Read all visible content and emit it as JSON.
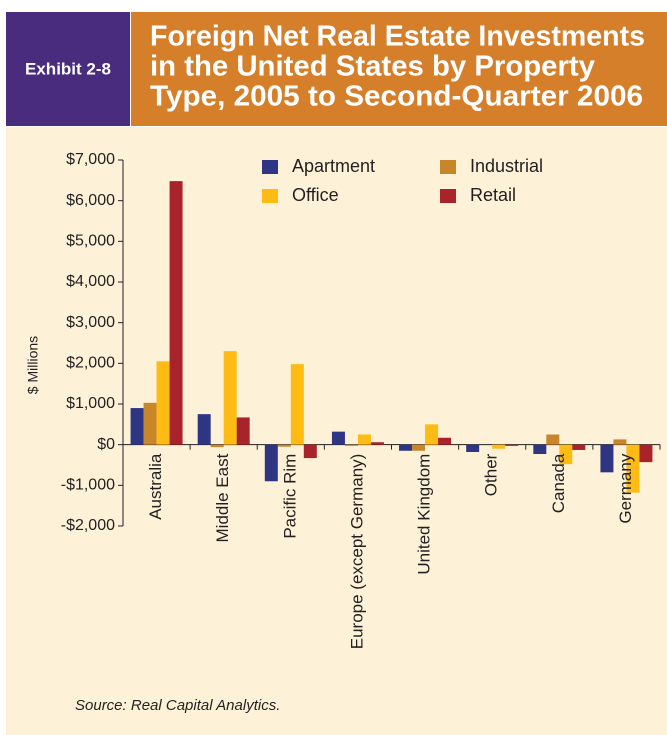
{
  "chart_data": {
    "type": "bar",
    "exhibit": "Exhibit 2-8",
    "title": [
      "Foreign Net Real Estate Investments",
      "in the United States by Property",
      "Type, 2005 to Second-Quarter 2006"
    ],
    "y_label": "$ Millions",
    "source": "Source: Real Capital Analytics.",
    "categories": [
      "Australia",
      "Middle East",
      "Pacific Rim",
      "Europe (except Germany)",
      "United Kingdom",
      "Other",
      "Canada",
      "Germany"
    ],
    "series": [
      {
        "name": "Apartment",
        "color": "#2e3583",
        "values": [
          900,
          750,
          -900,
          320,
          -150,
          -180,
          -230,
          -680
        ]
      },
      {
        "name": "Industrial",
        "color": "#c8862a",
        "values": [
          1030,
          -60,
          -50,
          -30,
          -150,
          0,
          250,
          130
        ]
      },
      {
        "name": "Office",
        "color": "#fdbb13",
        "values": [
          2050,
          2300,
          1980,
          250,
          500,
          -100,
          -480,
          -1180
        ]
      },
      {
        "name": "Retail",
        "color": "#a8232a",
        "values": [
          6480,
          670,
          -330,
          60,
          170,
          -30,
          -130,
          -430
        ]
      }
    ],
    "ylim": [
      -2000,
      7000
    ],
    "yticks": [
      {
        "value": -2000,
        "label": "-$2,000"
      },
      {
        "value": -1000,
        "label": "-$1,000"
      },
      {
        "value": 0,
        "label": "$0"
      },
      {
        "value": 1000,
        "label": "$1,000"
      },
      {
        "value": 2000,
        "label": "$2,000"
      },
      {
        "value": 3000,
        "label": "$3,000"
      },
      {
        "value": 4000,
        "label": "$4,000"
      },
      {
        "value": 5000,
        "label": "$5,000"
      },
      {
        "value": 6000,
        "label": "$6,000"
      },
      {
        "value": 7000,
        "label": "$7,000"
      }
    ],
    "grid": false,
    "legend": "top"
  }
}
